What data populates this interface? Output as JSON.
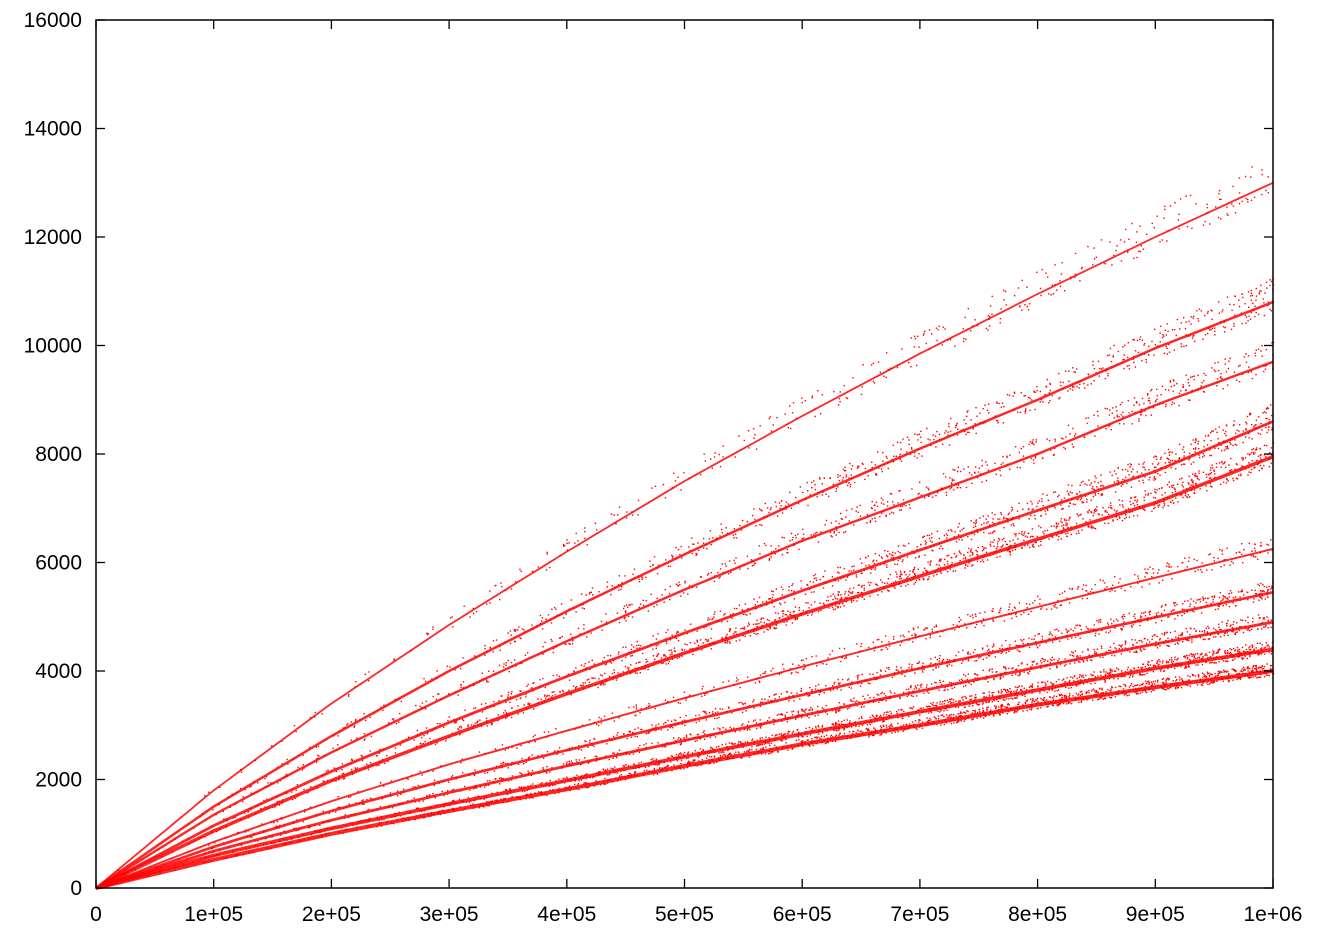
{
  "chart_data": {
    "type": "scatter",
    "title": "",
    "xlabel": "",
    "ylabel": "",
    "xlim": [
      0,
      1000000
    ],
    "ylim": [
      0,
      16000
    ],
    "grid": false,
    "legend": "none",
    "marker_color": "#ff0000",
    "x_ticks": [
      {
        "value": 0,
        "label": "0"
      },
      {
        "value": 100000,
        "label": "1e+05"
      },
      {
        "value": 200000,
        "label": "2e+05"
      },
      {
        "value": 300000,
        "label": "3e+05"
      },
      {
        "value": 400000,
        "label": "4e+05"
      },
      {
        "value": 500000,
        "label": "5e+05"
      },
      {
        "value": 600000,
        "label": "6e+05"
      },
      {
        "value": 700000,
        "label": "7e+05"
      },
      {
        "value": 800000,
        "label": "8e+05"
      },
      {
        "value": 900000,
        "label": "9e+05"
      },
      {
        "value": 1000000,
        "label": "1e+06"
      }
    ],
    "y_ticks": [
      {
        "value": 0,
        "label": "0"
      },
      {
        "value": 2000,
        "label": "2000"
      },
      {
        "value": 4000,
        "label": "4000"
      },
      {
        "value": 6000,
        "label": "6000"
      },
      {
        "value": 8000,
        "label": "8000"
      },
      {
        "value": 10000,
        "label": "10000"
      },
      {
        "value": 12000,
        "label": "12000"
      },
      {
        "value": 14000,
        "label": "14000"
      },
      {
        "value": 16000,
        "label": "16000"
      }
    ],
    "series": [
      {
        "x": [
          0,
          100000,
          200000,
          300000,
          400000,
          500000,
          600000,
          700000,
          800000,
          900000,
          1000000
        ],
        "y": [
          0,
          520,
          1000,
          1420,
          1820,
          2250,
          2650,
          3000,
          3380,
          3700,
          4000
        ],
        "density": 1.0
      },
      {
        "x": [
          0,
          100000,
          200000,
          300000,
          400000,
          500000,
          600000,
          700000,
          800000,
          900000,
          1000000
        ],
        "y": [
          0,
          600,
          1100,
          1550,
          1980,
          2420,
          2840,
          3250,
          3650,
          4050,
          4400
        ],
        "density": 0.9
      },
      {
        "x": [
          0,
          100000,
          200000,
          300000,
          400000,
          500000,
          600000,
          700000,
          800000,
          900000,
          1000000
        ],
        "y": [
          0,
          680,
          1250,
          1760,
          2250,
          2720,
          3180,
          3630,
          4070,
          4500,
          4900
        ],
        "density": 0.6
      },
      {
        "x": [
          0,
          100000,
          200000,
          300000,
          400000,
          500000,
          600000,
          700000,
          800000,
          900000,
          1000000
        ],
        "y": [
          0,
          760,
          1420,
          2000,
          2540,
          3060,
          3560,
          4050,
          4520,
          4990,
          5450
        ],
        "density": 0.55
      },
      {
        "x": [
          0,
          100000,
          200000,
          300000,
          400000,
          500000,
          600000,
          700000,
          800000,
          900000,
          1000000
        ],
        "y": [
          0,
          850,
          1600,
          2280,
          2900,
          3500,
          4080,
          4640,
          5180,
          5720,
          6250
        ],
        "density": 0.3
      },
      {
        "x": [
          0,
          100000,
          200000,
          300000,
          400000,
          500000,
          600000,
          700000,
          800000,
          900000,
          1000000
        ],
        "y": [
          0,
          1050,
          1980,
          2800,
          3580,
          4330,
          5050,
          5750,
          6430,
          7100,
          7950
        ],
        "density": 0.85
      },
      {
        "x": [
          0,
          100000,
          200000,
          300000,
          400000,
          500000,
          600000,
          700000,
          800000,
          900000,
          1000000
        ],
        "y": [
          0,
          1150,
          2150,
          3050,
          3900,
          4700,
          5480,
          6230,
          6960,
          7680,
          8600
        ],
        "density": 0.6
      },
      {
        "x": [
          0,
          100000,
          200000,
          300000,
          400000,
          500000,
          600000,
          700000,
          800000,
          900000,
          1000000
        ],
        "y": [
          0,
          1350,
          2500,
          3550,
          4550,
          5500,
          6400,
          7200,
          8000,
          8900,
          9700
        ],
        "density": 0.45
      },
      {
        "x": [
          0,
          100000,
          200000,
          300000,
          400000,
          500000,
          600000,
          700000,
          800000,
          900000,
          1000000
        ],
        "y": [
          0,
          1500,
          2800,
          4000,
          5100,
          6150,
          7150,
          8100,
          9000,
          9950,
          10800
        ],
        "density": 0.5
      },
      {
        "x": [
          0,
          100000,
          200000,
          300000,
          400000,
          500000,
          600000,
          700000,
          800000,
          900000,
          1000000
        ],
        "y": [
          0,
          1800,
          3400,
          4850,
          6200,
          7500,
          8700,
          9850,
          10950,
          12000,
          13000
        ],
        "density": 0.25
      }
    ]
  }
}
